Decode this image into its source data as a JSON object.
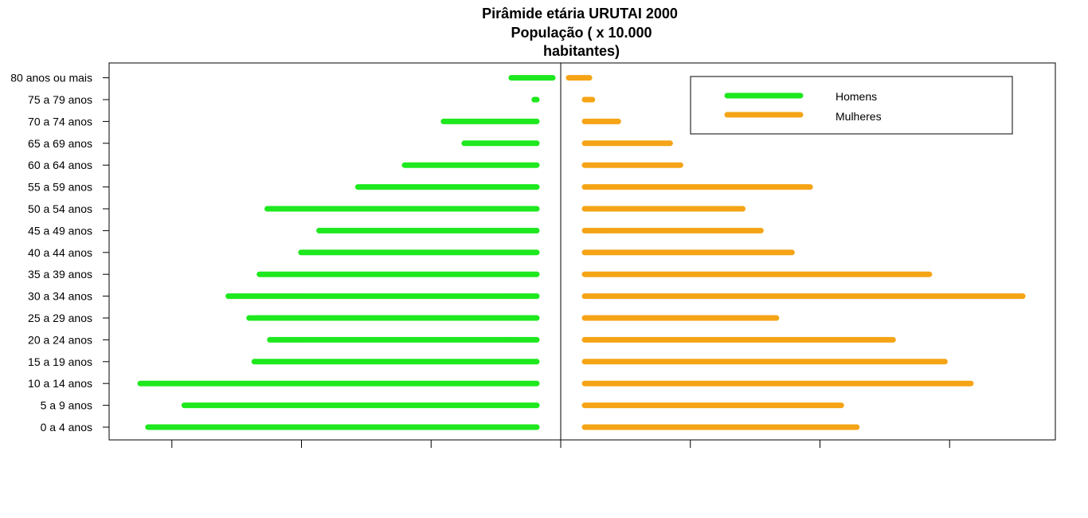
{
  "chart_data": {
    "type": "bar",
    "orientation": "horizontal",
    "title_lines": [
      "Pirâmide etária URUTAI 2000",
      "População ( x 10.000",
      "habitantes)"
    ],
    "categories": [
      "0 a 4 anos",
      "5 a 9 anos",
      "10 a 14 anos",
      "15 a 19 anos",
      "20 a 24 anos",
      "25 a 29 anos",
      "30 a 34 anos",
      "35 a 39 anos",
      "40 a 44 anos",
      "45 a 49 anos",
      "50 a 54 anos",
      "55 a 59 anos",
      "60 a 64 anos",
      "65 a 69 anos",
      "70 a 74 anos",
      "75 a 79 anos",
      "80 anos ou mais"
    ],
    "series": [
      {
        "name": "Homens",
        "color": "#1ee81e",
        "values": [
          150,
          136,
          153,
          109,
          103,
          111,
          119,
          107,
          91,
          84,
          104,
          69,
          51,
          28,
          36,
          1,
          16
        ]
      },
      {
        "name": "Mulheres",
        "color": "#f5a416",
        "values": [
          105,
          99,
          149,
          139,
          119,
          74,
          169,
          133,
          80,
          68,
          61,
          87,
          37,
          33,
          13,
          3,
          8
        ]
      }
    ],
    "xlim": [
      -175,
      190
    ],
    "x_ticks": [
      -150,
      -100,
      -50,
      0,
      50,
      100,
      150
    ],
    "tick_labels_visible": false,
    "center_divider": true,
    "grid": false,
    "legend": {
      "position": "top-right",
      "entries": [
        "Homens",
        "Mulheres"
      ]
    }
  }
}
